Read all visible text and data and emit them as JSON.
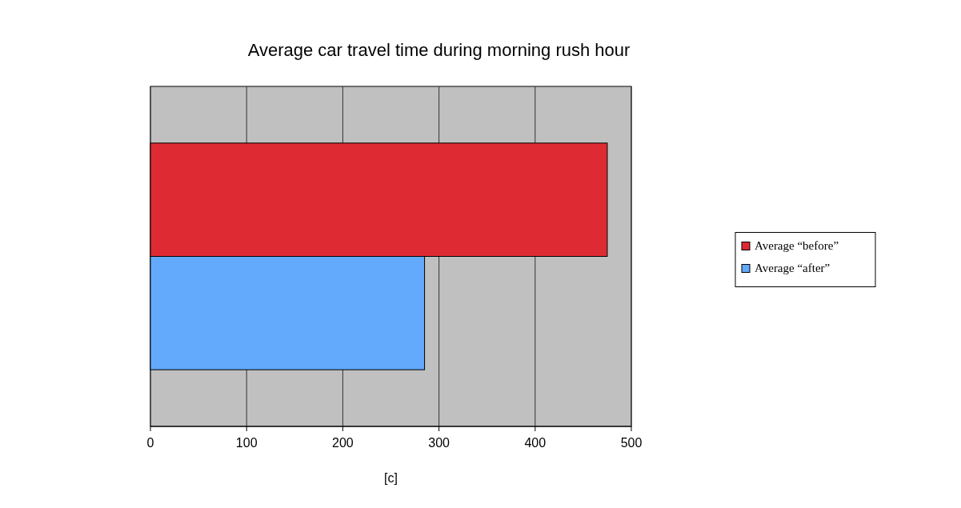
{
  "chart_data": {
    "type": "bar",
    "orientation": "horizontal",
    "title": "Average car travel time during morning rush hour",
    "xlabel": "[c]",
    "categories": [
      null
    ],
    "series": [
      {
        "name": "Average “before”",
        "color": "#de2b33",
        "values": [
          475
        ]
      },
      {
        "name": "Average “after”",
        "color": "#63aafc",
        "values": [
          285
        ]
      }
    ],
    "xlim": [
      0,
      500
    ],
    "xticks": [
      0,
      100,
      200,
      300,
      400,
      500
    ],
    "grid": "x",
    "legend": "right"
  }
}
